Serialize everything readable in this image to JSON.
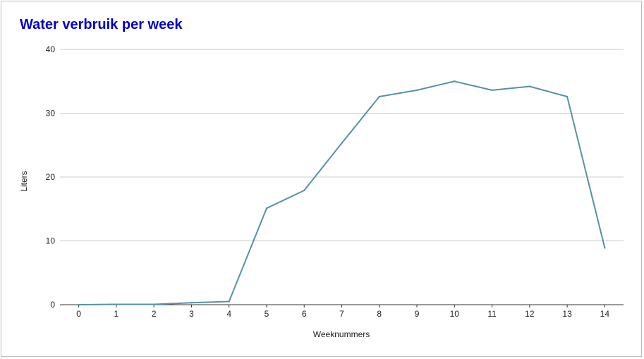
{
  "chart_data": {
    "type": "line",
    "title": "Water verbruik per week",
    "xlabel": "Weeknummers",
    "ylabel": "Liters",
    "x": [
      0,
      1,
      2,
      3,
      4,
      5,
      6,
      7,
      8,
      9,
      10,
      11,
      12,
      13,
      14
    ],
    "series": [
      {
        "values": [
          0,
          0.05,
          0.05,
          0.3,
          0.5,
          15.1,
          17.9,
          25.3,
          32.6,
          33.6,
          35.0,
          33.6,
          34.2,
          32.6,
          8.9
        ]
      }
    ],
    "xlim": [
      -0.5,
      14.5
    ],
    "ylim": [
      0,
      40
    ],
    "yticks": [
      0,
      10,
      20,
      30,
      40
    ],
    "grid": true,
    "legend": "none",
    "colors": {
      "title": "#0000cc",
      "line": "#5591a8",
      "grid": "#cccccc",
      "axis": "#333333"
    }
  }
}
